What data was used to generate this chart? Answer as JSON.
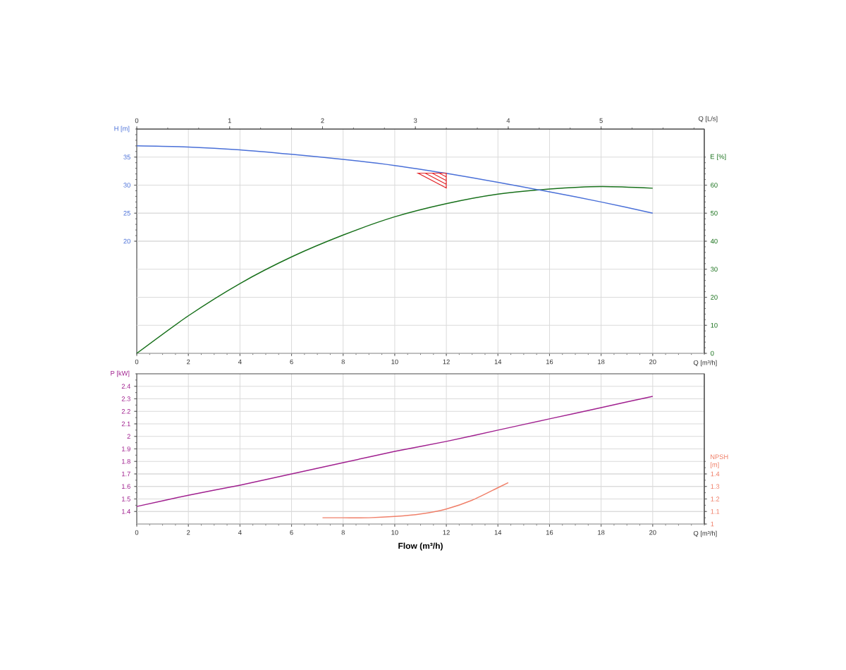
{
  "chart_data": [
    {
      "type": "line",
      "xlabel": "Q [m³/h]",
      "x2label": "Q [L/s]",
      "ylabel": "H [m]",
      "y2label": "E [%]",
      "xlim": [
        0,
        22
      ],
      "xticks": [
        0,
        2,
        4,
        6,
        8,
        10,
        12,
        14,
        16,
        18,
        20
      ],
      "x2lim": [
        0,
        6.111
      ],
      "x2ticks": [
        0,
        1,
        2,
        3,
        4,
        5
      ],
      "ylim": [
        0,
        40
      ],
      "yticks": [
        20,
        25,
        30,
        35
      ],
      "y2lim": [
        0,
        80
      ],
      "y2ticks": [
        0,
        10,
        20,
        30,
        40,
        50,
        60
      ],
      "grid": true,
      "series": [
        {
          "color": "#4a70d8",
          "x": [
            0,
            2,
            4,
            6,
            8,
            10,
            12,
            14,
            16,
            18,
            20
          ],
          "values": [
            37.0,
            36.8,
            36.3,
            35.5,
            34.6,
            33.5,
            32.1,
            30.5,
            28.8,
            27.0,
            25.0
          ]
        },
        {
          "color": "#17701a",
          "axis": "y2",
          "x": [
            0,
            2,
            4,
            6,
            8,
            10,
            12,
            14,
            16,
            18,
            20
          ],
          "values": [
            0,
            13.4,
            24.9,
            34.4,
            42.2,
            48.7,
            53.4,
            56.8,
            58.6,
            59.5,
            58.9
          ]
        }
      ]
    },
    {
      "type": "line",
      "xlabel": "Q [m³/h]",
      "ylabel": "P [kW]",
      "y2label": "NPSH [m]",
      "annotations": [
        "Flow (m³/h)"
      ],
      "xlim": [
        0,
        22
      ],
      "xticks": [
        0,
        2,
        4,
        6,
        8,
        10,
        12,
        14,
        16,
        18,
        20
      ],
      "ylim": [
        1.3,
        2.5
      ],
      "yticks": [
        1.4,
        1.5,
        1.6,
        1.7,
        1.8,
        1.9,
        2,
        2.1,
        2.2,
        2.3,
        2.4
      ],
      "y2lim": [
        1,
        2.2
      ],
      "y2ticks": [
        1,
        1.1,
        1.2,
        1.3,
        1.4
      ],
      "grid": true,
      "series": [
        {
          "color": "#a0208f",
          "x": [
            0,
            2,
            4,
            6,
            8,
            10,
            12,
            14,
            16,
            18,
            20
          ],
          "values": [
            1.44,
            1.53,
            1.61,
            1.7,
            1.79,
            1.88,
            1.96,
            2.05,
            2.14,
            2.23,
            2.32
          ]
        },
        {
          "color": "#f0806a",
          "axis": "y2",
          "x": [
            7.2,
            8,
            9,
            10,
            11,
            12,
            13,
            14,
            14.4
          ],
          "values": [
            1.05,
            1.05,
            1.05,
            1.06,
            1.08,
            1.12,
            1.19,
            1.29,
            1.33
          ]
        }
      ]
    }
  ]
}
